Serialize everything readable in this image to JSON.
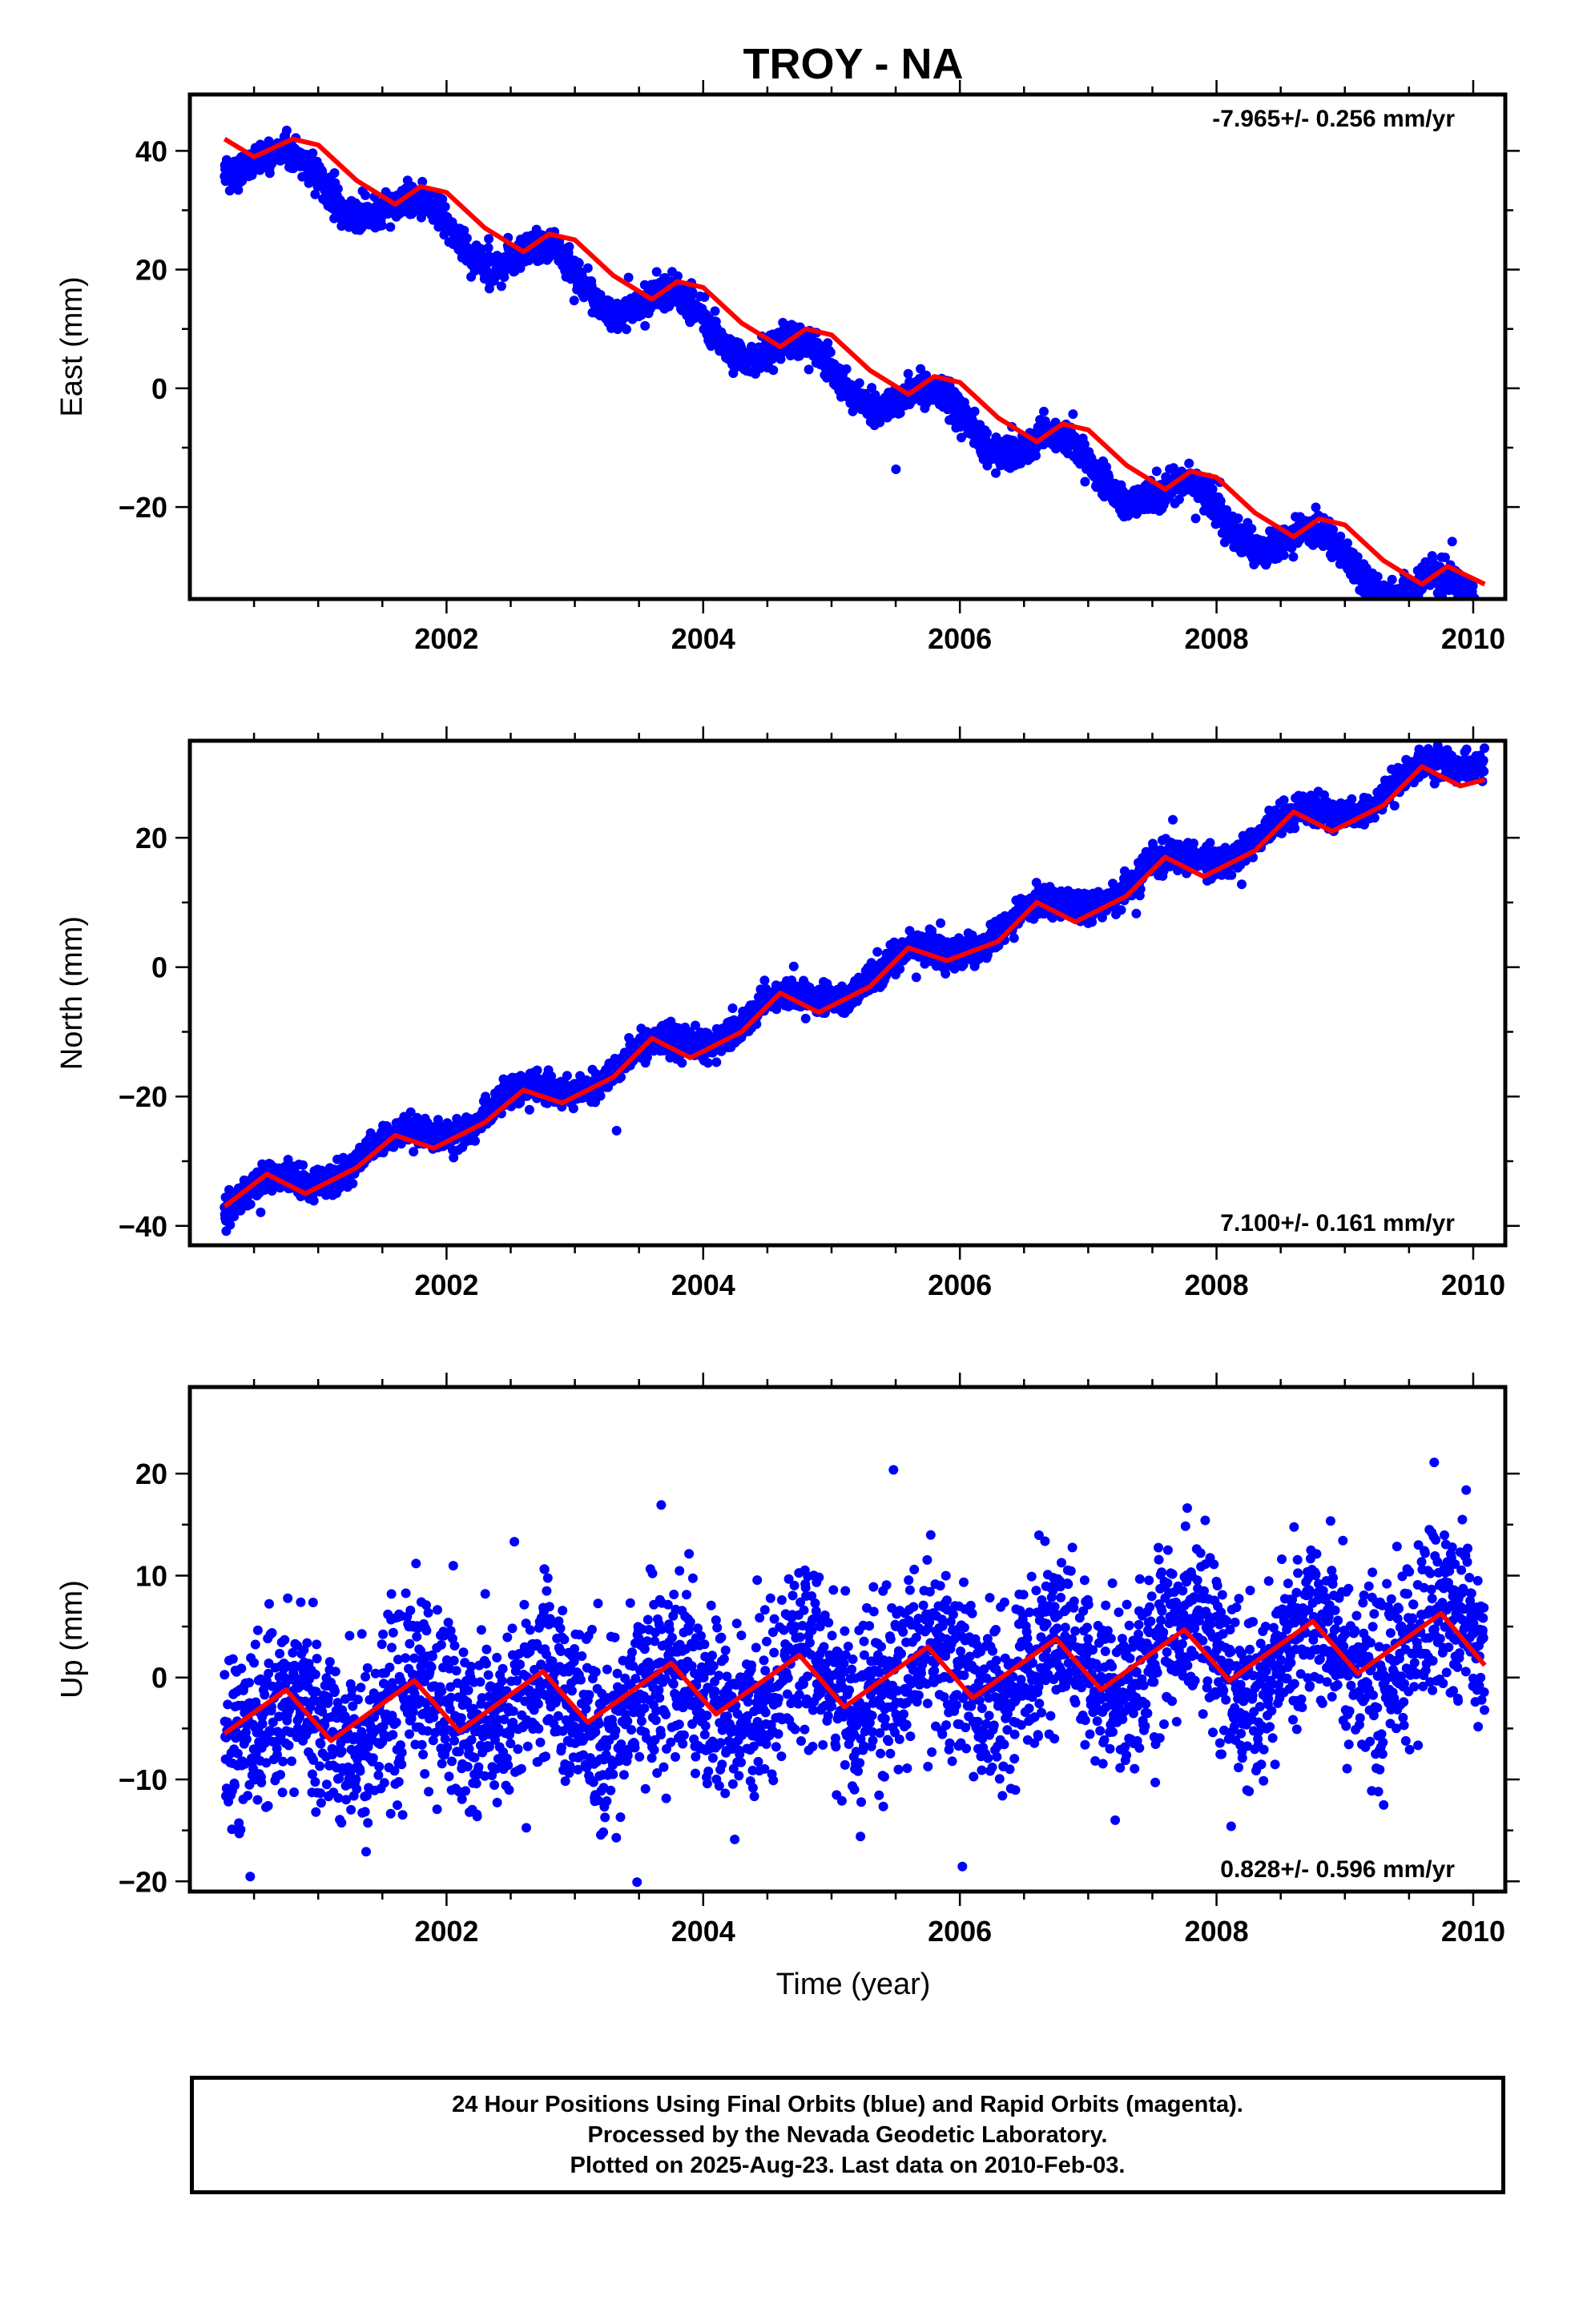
{
  "title": "TROY - NA",
  "xlabel": "Time (year)",
  "footer": {
    "line1": "24 Hour Positions Using Final Orbits (blue) and Rapid Orbits (magenta).",
    "line2": "Processed by the Nevada Geodetic Laboratory.",
    "line3": "Plotted on 2025-Aug-23. Last data on 2010-Feb-03."
  },
  "colors": {
    "points": "#0000ff",
    "fit": "#ff0000"
  },
  "chart_data": [
    {
      "type": "scatter",
      "panel": "east",
      "ylabel": "East (mm)",
      "rate_text": "-7.965+/- 0.256 mm/yr",
      "rate_position": "top-right",
      "xlim": [
        2000.0,
        2010.25
      ],
      "ylim": [
        -35.5,
        49.5
      ],
      "xticks": [
        2002,
        2004,
        2006,
        2008,
        2010
      ],
      "yticks": [
        -20,
        0,
        20,
        40
      ],
      "date_range": [
        2000.27,
        2010.09
      ],
      "trend": {
        "rate_mm_per_yr": -7.965,
        "value_at_2000_27": 40.5
      },
      "seasonal": {
        "amplitude": 3.5,
        "peak_fraction_of_year": 0.8
      },
      "scatter_sd": 1.3,
      "series": [
        {
          "kind": "fit-line",
          "x": [
            2000.27,
            2000.5,
            2000.8,
            2001.0,
            2001.3,
            2001.6,
            2001.8,
            2002.0,
            2002.3,
            2002.6,
            2002.8,
            2003.0,
            2003.3,
            2003.6,
            2003.8,
            2004.0,
            2004.3,
            2004.6,
            2004.8,
            2005.0,
            2005.3,
            2005.6,
            2005.8,
            2006.0,
            2006.3,
            2006.6,
            2006.8,
            2007.0,
            2007.3,
            2007.6,
            2007.8,
            2008.0,
            2008.3,
            2008.6,
            2008.8,
            2009.0,
            2009.3,
            2009.6,
            2009.8,
            2010.09
          ],
          "y": [
            42,
            39,
            42,
            41,
            35,
            31,
            34,
            33,
            27,
            23,
            26,
            25,
            19,
            15,
            18,
            17,
            11,
            7,
            10,
            9,
            3,
            -1,
            2,
            1,
            -5,
            -9,
            -6,
            -7,
            -13,
            -17,
            -14,
            -15,
            -21,
            -25,
            -22,
            -23,
            -29,
            -33,
            -30,
            -33
          ]
        }
      ]
    },
    {
      "type": "scatter",
      "panel": "north",
      "ylabel": "North (mm)",
      "rate_text": "7.100+/- 0.161 mm/yr",
      "rate_position": "bottom-right",
      "xlim": [
        2000.0,
        2010.25
      ],
      "ylim": [
        -43,
        35
      ],
      "xticks": [
        2002,
        2004,
        2006,
        2008,
        2010
      ],
      "yticks": [
        -40,
        -20,
        0,
        20
      ],
      "date_range": [
        2000.27,
        2010.09
      ],
      "trend": {
        "rate_mm_per_yr": 7.1,
        "value_at_2000_27": -37
      },
      "seasonal": {
        "amplitude": 2.0,
        "peak_fraction_of_year": 0.6
      },
      "scatter_sd": 1.1,
      "series": [
        {
          "kind": "fit-line",
          "x": [
            2000.27,
            2000.6,
            2000.9,
            2001.3,
            2001.6,
            2001.9,
            2002.3,
            2002.6,
            2002.9,
            2003.3,
            2003.6,
            2003.9,
            2004.3,
            2004.6,
            2004.9,
            2005.3,
            2005.6,
            2005.9,
            2006.3,
            2006.6,
            2006.9,
            2007.3,
            2007.6,
            2007.9,
            2008.3,
            2008.6,
            2008.9,
            2009.3,
            2009.6,
            2009.9,
            2010.09
          ],
          "y": [
            -37,
            -32,
            -35,
            -31,
            -26,
            -28,
            -24,
            -19,
            -21,
            -17,
            -11,
            -14,
            -10,
            -4,
            -7,
            -3,
            3,
            1,
            4,
            10,
            7,
            11,
            17,
            14,
            18,
            24,
            21,
            25,
            31,
            28,
            29
          ]
        }
      ]
    },
    {
      "type": "scatter",
      "panel": "up",
      "ylabel": "Up (mm)",
      "rate_text": "0.828+/- 0.596 mm/yr",
      "rate_position": "bottom-right",
      "xlim": [
        2000.0,
        2010.25
      ],
      "ylim": [
        -21,
        28.5
      ],
      "xticks": [
        2002,
        2004,
        2006,
        2008,
        2010
      ],
      "yticks": [
        -20,
        -10,
        0,
        10,
        20
      ],
      "date_range": [
        2000.27,
        2010.09
      ],
      "trend": {
        "rate_mm_per_yr": 0.828,
        "value_at_2000_27": -4.5
      },
      "seasonal": {
        "amplitude": 3.0,
        "peak_fraction_of_year": 0.75
      },
      "scatter_sd": 4.2,
      "series": [
        {
          "kind": "fit-line",
          "x": [
            2000.27,
            2000.75,
            2001.1,
            2001.75,
            2002.1,
            2002.75,
            2003.1,
            2003.75,
            2004.1,
            2004.75,
            2005.1,
            2005.75,
            2006.1,
            2006.75,
            2007.1,
            2007.75,
            2008.1,
            2008.75,
            2009.1,
            2009.75,
            2010.09
          ],
          "y": [
            -5.5,
            -1.2,
            -6.2,
            -0.3,
            -5.3,
            0.6,
            -4.4,
            1.4,
            -3.6,
            2.2,
            -2.9,
            3.0,
            -2.0,
            3.8,
            -1.2,
            4.7,
            -0.3,
            5.5,
            0.4,
            6.3,
            1.2
          ]
        }
      ]
    }
  ]
}
